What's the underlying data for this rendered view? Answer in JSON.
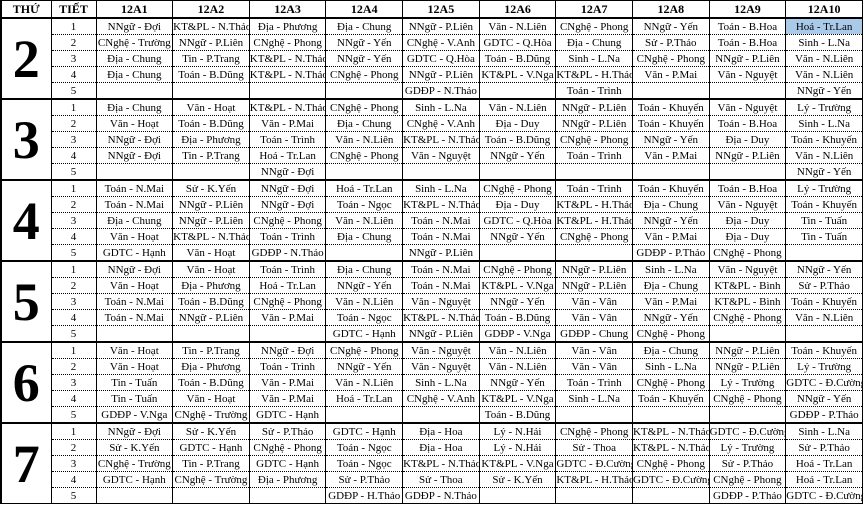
{
  "timetable": {
    "headers": [
      "THỨ",
      "TIẾT",
      "12A1",
      "12A2",
      "12A3",
      "12A4",
      "12A5",
      "12A6",
      "12A7",
      "12A8",
      "12A9",
      "12A10"
    ],
    "highlight": {
      "day_index": 0,
      "period_index": 0,
      "col_index": 9,
      "color": "#a9cbe9",
      "value": "Hoá - Tr.Lan"
    },
    "days": [
      {
        "day": "2",
        "periods": [
          {
            "period": "1",
            "cells": [
              "NNgữ - Đợi",
              "KT&PL - N.Thảo",
              "Địa - Phương",
              "Địa - Chung",
              "NNgữ - P.Liên",
              "Văn - N.Liên",
              "CNghệ - Phong",
              "NNgữ - Yến",
              "Toán - B.Hoa",
              "Hoá - Tr.Lan"
            ]
          },
          {
            "period": "2",
            "cells": [
              "CNghệ - Trường",
              "NNgữ - P.Liên",
              "CNghệ - Phong",
              "NNgữ - Yến",
              "CNghệ - V.Anh",
              "GDTC - Q.Hòa",
              "Địa - Chung",
              "Sử - P.Thảo",
              "Toán - B.Hoa",
              "Sinh - L.Na"
            ]
          },
          {
            "period": "3",
            "cells": [
              "Địa - Chung",
              "Tin - P.Trang",
              "KT&PL - N.Thảo",
              "NNgữ - Yến",
              "GDTC - Q.Hòa",
              "Toán - B.Dũng",
              "Sinh - L.Na",
              "CNghệ - Phong",
              "NNgữ - P.Liên",
              "Văn - N.Liên"
            ]
          },
          {
            "period": "4",
            "cells": [
              "Địa - Chung",
              "Toán - B.Dũng",
              "KT&PL - N.Thảo",
              "CNghệ - Phong",
              "NNgữ - P.Liên",
              "KT&PL - V.Nga",
              "KT&PL - H.Thảo",
              "Văn - P.Mai",
              "Văn - Nguyệt",
              "Văn - N.Liên"
            ]
          },
          {
            "period": "5",
            "cells": [
              "",
              "",
              "",
              "",
              "GDĐP - N.Thảo",
              "",
              "Toán - Trình",
              "",
              "",
              "NNgữ - Yến"
            ]
          }
        ]
      },
      {
        "day": "3",
        "periods": [
          {
            "period": "1",
            "cells": [
              "Địa - Chung",
              "Văn - Hoạt",
              "KT&PL - N.Thảo",
              "CNghệ - Phong",
              "Sinh - L.Na",
              "Văn - N.Liên",
              "NNgữ - P.Liên",
              "Toán - Khuyến",
              "Văn - Nguyệt",
              "Lý - Trường"
            ]
          },
          {
            "period": "2",
            "cells": [
              "Văn - Hoạt",
              "Toán - B.Dũng",
              "Văn - P.Mai",
              "Địa - Chung",
              "CNghệ - V.Anh",
              "Địa - Duy",
              "NNgữ - P.Liên",
              "Toán - Khuyến",
              "Toán - B.Hoa",
              "Sinh - L.Na"
            ]
          },
          {
            "period": "3",
            "cells": [
              "NNgữ - Đợi",
              "Địa - Phương",
              "Toán - Trình",
              "Văn - N.Liên",
              "KT&PL - N.Thảo",
              "Toán - B.Dũng",
              "CNghệ - Phong",
              "NNgữ - Yến",
              "Địa - Duy",
              "Toán - Khuyến"
            ]
          },
          {
            "period": "4",
            "cells": [
              "NNgữ - Đợi",
              "Tin - P.Trang",
              "Hoá - Tr.Lan",
              "CNghệ - Phong",
              "Văn - Nguyệt",
              "NNgữ - Yến",
              "Toán - Trình",
              "Văn - P.Mai",
              "NNgữ - P.Liên",
              "Văn - N.Liên"
            ]
          },
          {
            "period": "5",
            "cells": [
              "",
              "",
              "NNgữ - Đợi",
              "",
              "",
              "",
              "",
              "",
              "",
              "NNgữ - Yến"
            ]
          }
        ]
      },
      {
        "day": "4",
        "periods": [
          {
            "period": "1",
            "cells": [
              "Toán - N.Mai",
              "Sử - K.Yến",
              "NNgữ - Đợi",
              "Hoá - Tr.Lan",
              "Sinh - L.Na",
              "CNghệ - Phong",
              "Toán - Trình",
              "Toán - Khuyến",
              "Toán - B.Hoa",
              "Lý - Trường"
            ]
          },
          {
            "period": "2",
            "cells": [
              "Toán - N.Mai",
              "NNgữ - P.Liên",
              "NNgữ - Đợi",
              "Toán - Ngọc",
              "KT&PL - N.Thảo",
              "Địa - Duy",
              "KT&PL - H.Thảo",
              "Địa - Chung",
              "Văn - Nguyệt",
              "Toán - Khuyến"
            ]
          },
          {
            "period": "3",
            "cells": [
              "Địa - Chung",
              "NNgữ - P.Liên",
              "CNghệ - Phong",
              "Văn - N.Liên",
              "Toán - N.Mai",
              "GDTC - Q.Hòa",
              "KT&PL - H.Thảo",
              "NNgữ - Yến",
              "Địa - Duy",
              "Tin - Tuấn"
            ]
          },
          {
            "period": "4",
            "cells": [
              "Văn - Hoạt",
              "KT&PL - N.Thảo",
              "Toán - Trình",
              "Địa - Chung",
              "Toán - N.Mai",
              "NNgữ - Yến",
              "CNghệ - Phong",
              "Văn - P.Mai",
              "Địa - Duy",
              "Tin - Tuấn"
            ]
          },
          {
            "period": "5",
            "cells": [
              "GDTC - Hạnh",
              "Văn - Hoạt",
              "GDĐP - N.Thảo",
              "",
              "NNgữ - P.Liên",
              "",
              "",
              "GDĐP - P.Thảo",
              "CNghệ - Phong",
              ""
            ]
          }
        ]
      },
      {
        "day": "5",
        "periods": [
          {
            "period": "1",
            "cells": [
              "NNgữ - Đợi",
              "Văn - Hoạt",
              "Toán - Trình",
              "Địa - Chung",
              "Toán - N.Mai",
              "CNghệ - Phong",
              "NNgữ - P.Liên",
              "Sinh - L.Na",
              "Văn - Nguyệt",
              "NNgữ - Yến"
            ]
          },
          {
            "period": "2",
            "cells": [
              "Văn - Hoạt",
              "Địa - Phương",
              "Hoá - Tr.Lan",
              "NNgữ - Yến",
              "Toán - N.Mai",
              "KT&PL - V.Nga",
              "NNgữ - P.Liên",
              "Địa - Chung",
              "KT&PL - Bình",
              "Sử - P.Thảo"
            ]
          },
          {
            "period": "3",
            "cells": [
              "Toán - N.Mai",
              "Toán - B.Dũng",
              "CNghệ - Phong",
              "Văn - N.Liên",
              "Văn - Nguyệt",
              "NNgữ - Yến",
              "Văn - Vân",
              "Văn - P.Mai",
              "KT&PL - Bình",
              "Toán - Khuyến"
            ]
          },
          {
            "period": "4",
            "cells": [
              "Toán - N.Mai",
              "NNgữ - P.Liên",
              "Văn - P.Mai",
              "Toán - Ngọc",
              "KT&PL - N.Thảo",
              "Toán - B.Dũng",
              "Văn - Vân",
              "NNgữ - Yến",
              "CNghệ - Phong",
              "Văn - N.Liên"
            ]
          },
          {
            "period": "5",
            "cells": [
              "",
              "",
              "",
              "GDTC - Hạnh",
              "NNgữ - P.Liên",
              "GDĐP - V.Nga",
              "GDĐP - Chung",
              "CNghệ - Phong",
              "",
              ""
            ]
          }
        ]
      },
      {
        "day": "6",
        "periods": [
          {
            "period": "1",
            "cells": [
              "Văn - Hoạt",
              "Tin - P.Trang",
              "NNgữ - Đợi",
              "CNghệ - Phong",
              "Văn - Nguyệt",
              "Văn - N.Liên",
              "Văn - Vân",
              "Địa - Chung",
              "NNgữ - P.Liên",
              "Toán - Khuyến"
            ]
          },
          {
            "period": "2",
            "cells": [
              "Văn - Hoạt",
              "Địa - Phương",
              "Toán - Trình",
              "NNgữ - Yến",
              "Văn - Nguyệt",
              "Văn - N.Liên",
              "Văn - Vân",
              "Sinh - L.Na",
              "NNgữ - P.Liên",
              "Lý - Trường"
            ]
          },
          {
            "period": "3",
            "cells": [
              "Tin - Tuấn",
              "Toán - B.Dũng",
              "Văn - P.Mai",
              "Văn - N.Liên",
              "Sinh - L.Na",
              "NNgữ - Yến",
              "Toán - Trình",
              "CNghệ - Phong",
              "Lý - Trường",
              "GDTC - Đ.Cường"
            ]
          },
          {
            "period": "4",
            "cells": [
              "Tin - Tuấn",
              "Văn - Hoạt",
              "Văn - P.Mai",
              "Hoá - Tr.Lan",
              "CNghệ - V.Anh",
              "KT&PL - V.Nga",
              "Sinh - L.Na",
              "Toán - Khuyến",
              "CNghệ - Phong",
              "NNgữ - Yến"
            ]
          },
          {
            "period": "5",
            "cells": [
              "GDĐP - V.Nga",
              "CNghệ - Trường",
              "GDTC - Hạnh",
              "",
              "",
              "Toán - B.Dũng",
              "",
              "",
              "",
              "GDĐP - P.Thảo"
            ]
          }
        ]
      },
      {
        "day": "7",
        "periods": [
          {
            "period": "1",
            "cells": [
              "NNgữ - Đợi",
              "Sử - K.Yến",
              "Sử - P.Thảo",
              "GDTC - Hạnh",
              "Địa - Hoa",
              "Lý - N.Hải",
              "CNghệ - Phong",
              "KT&PL - N.Thảo",
              "GDTC - Đ.Cường",
              "Sinh - L.Na"
            ]
          },
          {
            "period": "2",
            "cells": [
              "Sử - K.Yến",
              "GDTC - Hạnh",
              "CNghệ - Phong",
              "Toán - Ngọc",
              "Địa - Hoa",
              "Lý - N.Hải",
              "Sử - Thoa",
              "KT&PL - N.Thảo",
              "Lý - Trường",
              "Sử - P.Thảo"
            ]
          },
          {
            "period": "3",
            "cells": [
              "CNghệ - Trường",
              "Tin - P.Trang",
              "GDTC - Hạnh",
              "Toán - Ngọc",
              "KT&PL - N.Thảo",
              "KT&PL - V.Nga",
              "GDTC - Đ.Cường",
              "CNghệ - Phong",
              "Sử - P.Thảo",
              "Hoá - Tr.Lan"
            ]
          },
          {
            "period": "4",
            "cells": [
              "GDTC - Hạnh",
              "CNghệ - Trường",
              "Địa - Phương",
              "Sử - P.Thảo",
              "Sử - Thoa",
              "Sử - K.Yến",
              "KT&PL - H.Thảo",
              "GDTC - Đ.Cường",
              "CNghệ - Phong",
              "Hoá - Tr.Lan"
            ]
          },
          {
            "period": "5",
            "cells": [
              "",
              "",
              "",
              "GDĐP - H.Thảo",
              "GDĐP - N.Thảo",
              "",
              "",
              "",
              "GDĐP - P.Thảo",
              "GDTC - Đ.Cường"
            ]
          }
        ]
      }
    ]
  },
  "colors": {
    "highlight": "#a9cbe9",
    "border": "#000000",
    "background": "#ffffff"
  }
}
